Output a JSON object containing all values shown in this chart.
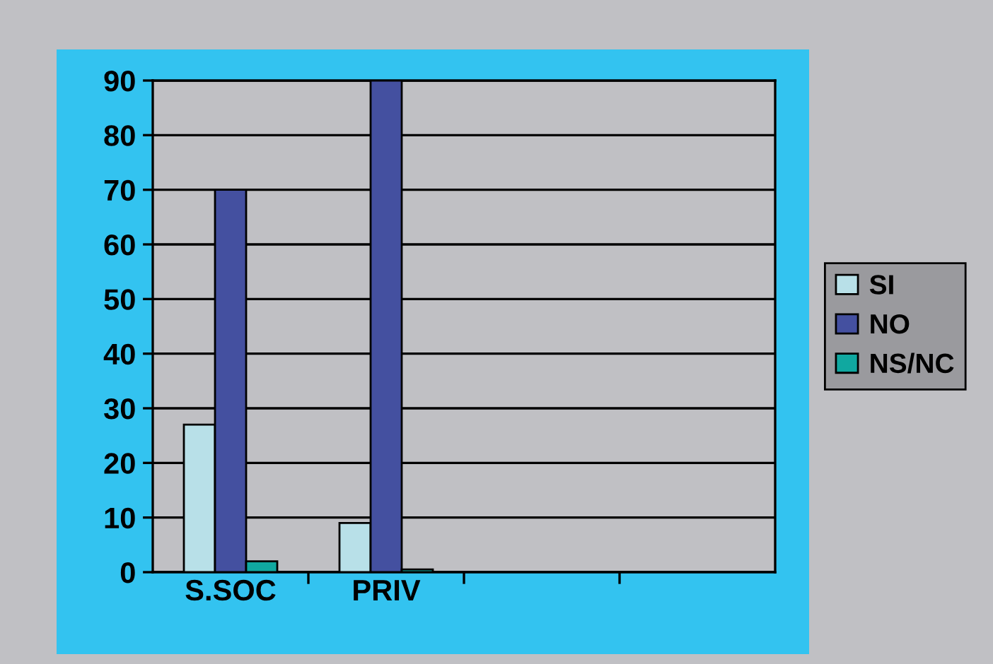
{
  "chart_data": {
    "type": "bar",
    "categories": [
      "S.SOC",
      "PRIV",
      null,
      null
    ],
    "series": [
      {
        "name": "SI",
        "color": "#b8e0e8",
        "values": [
          27,
          9,
          null,
          null
        ]
      },
      {
        "name": "NO",
        "color": "#4450a0",
        "values": [
          70,
          90,
          null,
          null
        ]
      },
      {
        "name": "NS/NC",
        "color": "#10a8a0",
        "values": [
          2,
          0.5,
          null,
          null
        ]
      }
    ],
    "ylim": [
      0,
      90
    ],
    "yticks": [
      0,
      10,
      20,
      30,
      40,
      50,
      60,
      70,
      80,
      90
    ],
    "grid": "y",
    "legend": "right"
  }
}
